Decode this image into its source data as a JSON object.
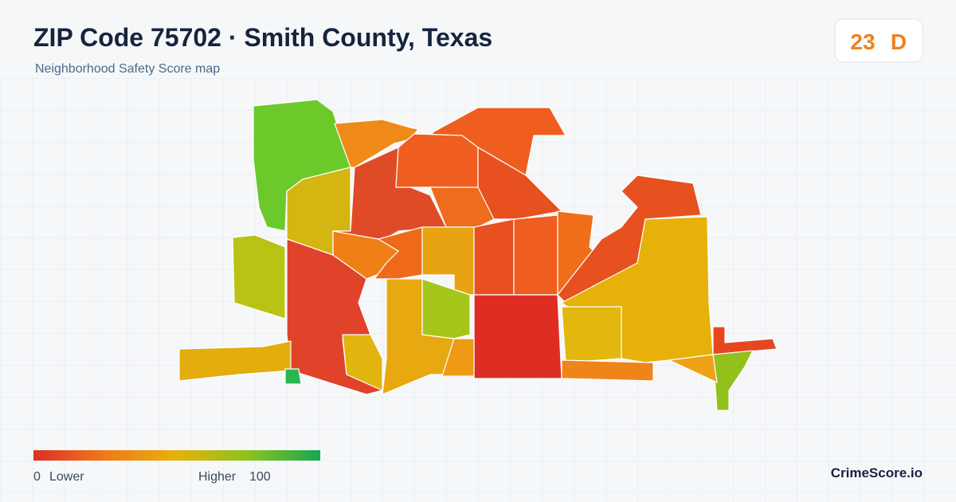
{
  "header": {
    "title": "ZIP Code 75702 · Smith County, Texas",
    "subtitle": "Neighborhood Safety Score map"
  },
  "score": {
    "value": 23,
    "grade": "D"
  },
  "legend": {
    "min": 0,
    "min_label": "Lower",
    "max_label": "Higher",
    "max": 100
  },
  "brand": "CrimeScore.io"
}
